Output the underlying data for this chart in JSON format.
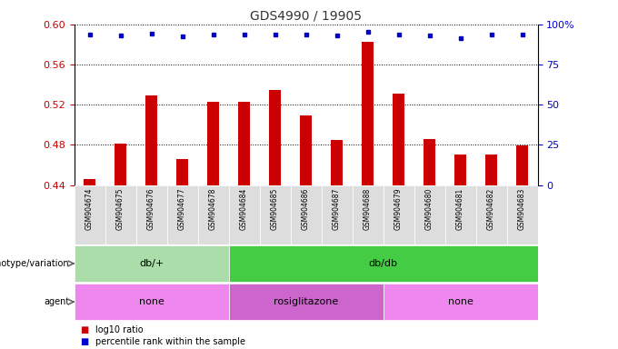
{
  "title": "GDS4990 / 19905",
  "samples": [
    "GSM904674",
    "GSM904675",
    "GSM904676",
    "GSM904677",
    "GSM904678",
    "GSM904684",
    "GSM904685",
    "GSM904686",
    "GSM904687",
    "GSM904688",
    "GSM904679",
    "GSM904680",
    "GSM904681",
    "GSM904682",
    "GSM904683"
  ],
  "log10_ratio": [
    0.446,
    0.481,
    0.529,
    0.466,
    0.523,
    0.523,
    0.535,
    0.509,
    0.485,
    0.583,
    0.531,
    0.486,
    0.47,
    0.47,
    0.479
  ],
  "percentile_y_left": [
    0.59,
    0.589,
    0.591,
    0.588,
    0.59,
    0.59,
    0.59,
    0.59,
    0.589,
    0.593,
    0.59,
    0.589,
    0.586,
    0.59,
    0.59
  ],
  "ylim_left": [
    0.44,
    0.6
  ],
  "ylim_right": [
    0,
    100
  ],
  "yticks_left": [
    0.44,
    0.48,
    0.52,
    0.56,
    0.6
  ],
  "yticks_right": [
    0,
    25,
    50,
    75,
    100
  ],
  "bar_color": "#cc0000",
  "dot_color": "#0000cc",
  "bar_bottom": 0.44,
  "bar_width": 0.4,
  "genotype_groups": [
    {
      "label": "db/+",
      "start": 0,
      "end": 5,
      "color": "#aaddaa"
    },
    {
      "label": "db/db",
      "start": 5,
      "end": 15,
      "color": "#44cc44"
    }
  ],
  "agent_groups": [
    {
      "label": "none",
      "start": 0,
      "end": 5,
      "color": "#ee88ee"
    },
    {
      "label": "rosiglitazone",
      "start": 5,
      "end": 10,
      "color": "#cc66cc"
    },
    {
      "label": "none",
      "start": 10,
      "end": 15,
      "color": "#ee88ee"
    }
  ],
  "legend_items": [
    {
      "color": "#cc0000",
      "label": "log10 ratio"
    },
    {
      "color": "#0000cc",
      "label": "percentile rank within the sample"
    }
  ],
  "title_color": "#333333",
  "background_color": "#ffffff",
  "tick_color_left": "#cc0000",
  "tick_color_right": "#0000cc",
  "xticklabel_bg": "#cccccc"
}
